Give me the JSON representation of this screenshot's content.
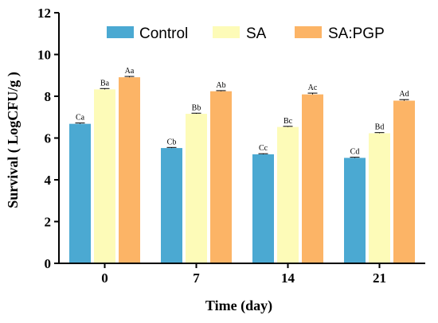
{
  "chart_data": {
    "type": "bar",
    "xlabel": "Time (day)",
    "ylabel": "Survival ( LogCFU/g )",
    "categories": [
      "0",
      "7",
      "14",
      "21"
    ],
    "ylim": [
      0,
      12
    ],
    "yticks": [
      0,
      2,
      4,
      6,
      8,
      10,
      12
    ],
    "legend_position": "top",
    "series": [
      {
        "name": "Control",
        "color": "#4BA9D2",
        "values": [
          6.68,
          5.52,
          5.22,
          5.05
        ],
        "errors": [
          0.04,
          0.03,
          0.03,
          0.03
        ],
        "labels": [
          "Ca",
          "Cb",
          "Cc",
          "Cd"
        ]
      },
      {
        "name": "SA",
        "color": "#FDFBB8",
        "values": [
          8.33,
          7.16,
          6.53,
          6.23
        ],
        "errors": [
          0.04,
          0.03,
          0.03,
          0.03
        ],
        "labels": [
          "Ba",
          "Bb",
          "Bc",
          "Bd"
        ]
      },
      {
        "name": "SA:PGP",
        "color": "#FCB466",
        "values": [
          8.91,
          8.24,
          8.09,
          7.79
        ],
        "errors": [
          0.04,
          0.03,
          0.06,
          0.05
        ],
        "labels": [
          "Aa",
          "Ab",
          "Ac",
          "Ad"
        ]
      }
    ]
  }
}
